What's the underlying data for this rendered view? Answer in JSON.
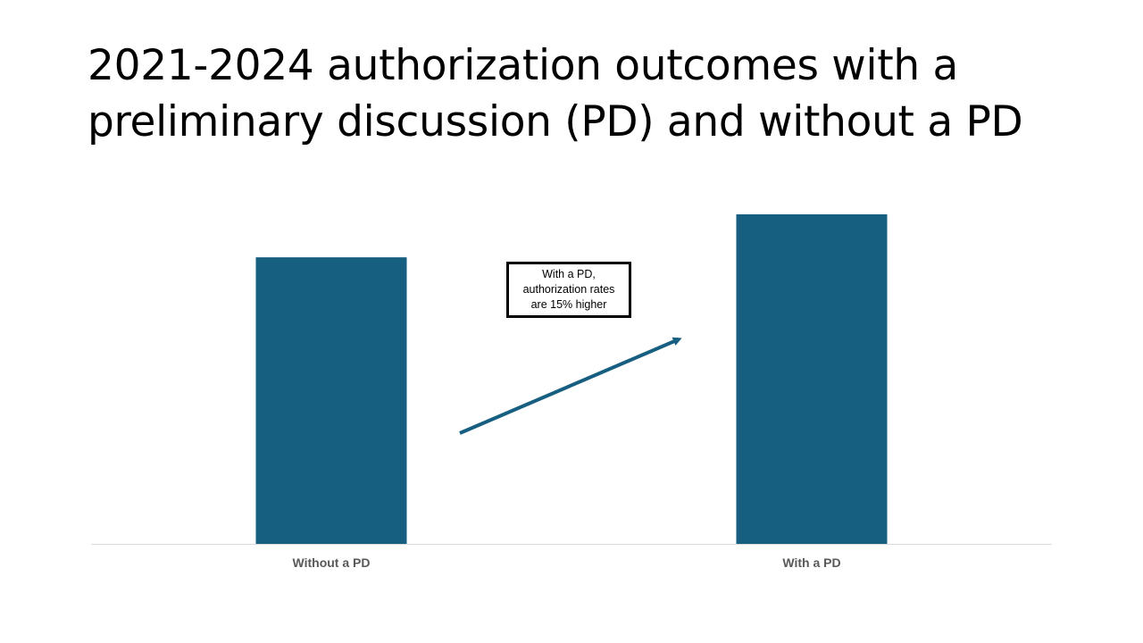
{
  "slide": {
    "title_lines": [
      "2021-2024 authorization outcomes with a",
      "preliminary discussion (PD) and without a PD"
    ]
  },
  "callout": {
    "lines": [
      "With a PD,",
      "authorization rates",
      "are 15% higher"
    ]
  },
  "colors": {
    "bar": "#175f80",
    "arrow": "#175f80",
    "axis_line": "#d9d9d9",
    "category_label": "#595959"
  },
  "chart_data": {
    "type": "bar",
    "title": "2021-2024 authorization outcomes with a preliminary discussion (PD) and without a PD",
    "categories": [
      "Without a PD",
      "With a PD"
    ],
    "values": [
      1.0,
      1.15
    ],
    "value_note": "",
    "xlabel": "",
    "ylabel": "",
    "ylim": [
      0,
      1.15
    ],
    "grid": false,
    "legend": "none",
    "annotations": [
      {
        "text": "With a PD, authorization rates are 15% higher",
        "arrow_from": "Without a PD",
        "arrow_to": "With a PD"
      }
    ]
  }
}
